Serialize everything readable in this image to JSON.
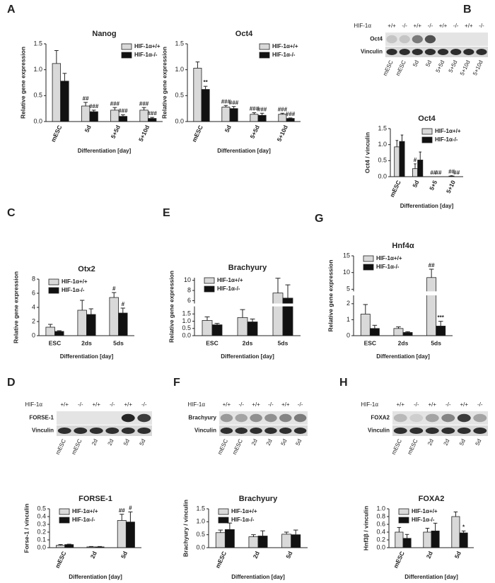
{
  "panels": [
    "A",
    "B",
    "C",
    "E",
    "G",
    "D",
    "F",
    "H"
  ],
  "blots": [
    {
      "label": "HIF-1α",
      "genotypes": [
        "+/+",
        "-/-",
        "+/+",
        "-/-",
        "+/+",
        "-/-",
        "+/+",
        "-/-"
      ],
      "rows": [
        "Oct4",
        "Vinculin"
      ],
      "lanes": [
        "mESC",
        "mESC",
        "5d",
        "5d",
        "5+5d",
        "5+5d",
        "5+10d",
        "5+10d"
      ]
    },
    {
      "label": "HIF-1α",
      "genotypes": [
        "+/+",
        "-/-",
        "+/+",
        "-/-",
        "+/+",
        "-/-"
      ],
      "rows": [
        "FORSE-1",
        "Vinculin"
      ],
      "lanes": [
        "mESC",
        "mESC",
        "2d",
        "2d",
        "5d",
        "5d"
      ]
    },
    {
      "label": "HIF-1α",
      "genotypes": [
        "+/+",
        "-/-",
        "+/+",
        "-/-",
        "+/+",
        "-/-"
      ],
      "rows": [
        "Brachyury",
        "Vinculin"
      ],
      "lanes": [
        "mESC",
        "mESC",
        "2d",
        "2d",
        "5d",
        "5d"
      ]
    },
    {
      "label": "HIF-1α",
      "genotypes": [
        "+/+",
        "-/-",
        "+/+",
        "-/-",
        "+/+",
        "-/-"
      ],
      "rows": [
        "FOXA2",
        "Vinculin"
      ],
      "lanes": [
        "mESC",
        "mESC",
        "2d",
        "2d",
        "5d",
        "5d"
      ]
    }
  ],
  "chart_data": [
    {
      "type": "bar",
      "title": "Nanog",
      "y_label": "Relative gene expression",
      "x_label": "Differentiation [day]",
      "categories": [
        "mESC",
        "5d",
        "5+5d",
        "5+10d"
      ],
      "legend": "upper right",
      "ylim": [
        0,
        1.5
      ],
      "yticks": [
        {
          "value": 0,
          "label": "0.0"
        },
        0.5,
        {
          "value": 1,
          "label": "1.0"
        },
        1.5
      ],
      "series": [
        {
          "name": "HIF-1α+/+",
          "color": "#d9d9d9",
          "values": [
            1.12,
            0.3,
            0.22,
            0.22
          ],
          "errors": [
            0.25,
            0.07,
            0.05,
            0.05
          ],
          "labels": [
            null,
            "##",
            "###",
            "###"
          ]
        },
        {
          "name": "HIF-1α-/-",
          "color": "#111111",
          "values": [
            0.78,
            0.19,
            0.1,
            0.06
          ],
          "errors": [
            0.15,
            0.03,
            0.03,
            0.02
          ],
          "labels": [
            null,
            "###",
            "###",
            "###"
          ]
        }
      ]
    },
    {
      "type": "bar",
      "title": "Oct4",
      "y_label": "Relative gene expression",
      "x_label": "Differentiation [day]",
      "categories": [
        "mESC",
        "5d",
        "5+5d",
        "5+10d"
      ],
      "legend": "upper right",
      "ylim": [
        0,
        1.5
      ],
      "yticks": [
        {
          "value": 0,
          "label": "0.0"
        },
        0.5,
        {
          "value": 1,
          "label": "1.0"
        },
        1.5
      ],
      "series": [
        {
          "name": "HIF-1α+/+",
          "color": "#d9d9d9",
          "values": [
            1.03,
            0.28,
            0.14,
            0.14
          ],
          "errors": [
            0.12,
            0.03,
            0.03,
            0.02
          ],
          "labels": [
            null,
            "###",
            "###",
            "###"
          ]
        },
        {
          "name": "HIF-1α-/-",
          "color": "#111111",
          "values": [
            0.62,
            0.25,
            0.12,
            0.06
          ],
          "errors": [
            0.06,
            0.04,
            0.04,
            0.01
          ],
          "labels": [
            "**",
            "###",
            "###",
            "###"
          ]
        }
      ]
    },
    {
      "type": "bar",
      "title": "Oct4",
      "y_label": "Oct4 / vinculin",
      "x_label": "Differentiation [day]",
      "categories": [
        "mESC",
        "5d",
        "5+5",
        "5+10"
      ],
      "legend": "upper right",
      "ylim": [
        0,
        1.5
      ],
      "yticks": [
        {
          "value": 0,
          "label": "0.0"
        },
        0.5,
        {
          "value": 1,
          "label": "1.0"
        },
        1.5
      ],
      "series": [
        {
          "name": "HIF-1α+/+",
          "color": "#d9d9d9",
          "values": [
            0.93,
            0.25,
            0,
            0.02
          ],
          "errors": [
            0.2,
            0.15,
            0,
            0.01
          ],
          "labels": [
            null,
            "#",
            "##",
            "##"
          ]
        },
        {
          "name": "HIF-1α-/-",
          "color": "#111111",
          "values": [
            1.1,
            0.52,
            0,
            0
          ],
          "errors": [
            0.2,
            0.25,
            0,
            0
          ],
          "labels": [
            null,
            null,
            "##",
            "##"
          ]
        }
      ]
    },
    {
      "type": "bar",
      "title": "Otx2",
      "y_label": "Relative gene expression",
      "x_label": "Differentiation [day]",
      "categories": [
        "ESC",
        "2ds",
        "5ds"
      ],
      "legend": "upper left",
      "ylim": [
        0,
        8
      ],
      "yticks": [
        0,
        2,
        4,
        6,
        8
      ],
      "series": [
        {
          "name": "HIF-1α+/+",
          "color": "#d9d9d9",
          "values": [
            1.2,
            3.6,
            5.4
          ],
          "errors": [
            0.4,
            1.4,
            0.7
          ],
          "labels": [
            null,
            null,
            "#"
          ]
        },
        {
          "name": "HIF-1α-/-",
          "color": "#111111",
          "values": [
            0.6,
            3.0,
            3.2
          ],
          "errors": [
            0.1,
            0.8,
            0.7
          ],
          "labels": [
            null,
            null,
            "#"
          ]
        }
      ]
    },
    {
      "type": "bar",
      "title": "Brachyury",
      "y_label": "Relative gene expression",
      "x_label": "Differentiation [day]",
      "categories": [
        "ESC",
        "2ds",
        "5ds"
      ],
      "legend": "upper left",
      "ylim": [
        0,
        10.5
      ],
      "ybreak": [
        2,
        5.5
      ],
      "yticks": [
        {
          "value": 0,
          "label": "0.0"
        },
        0.5,
        {
          "value": 1,
          "label": "1.0"
        },
        1.5,
        6,
        8,
        10
      ],
      "series": [
        {
          "name": "HIF-1α+/+",
          "color": "#d9d9d9",
          "values": [
            1.05,
            1.25,
            7.5
          ],
          "errors": [
            0.25,
            0.55,
            2.9
          ],
          "labels": [
            null,
            null,
            null
          ]
        },
        {
          "name": "HIF-1α-/-",
          "color": "#111111",
          "values": [
            0.75,
            0.95,
            6.5
          ],
          "errors": [
            0.1,
            0.2,
            2.6
          ],
          "labels": [
            null,
            null,
            null
          ]
        }
      ]
    },
    {
      "type": "bar",
      "title": "Hnf4α",
      "y_label": "Relative gene expression",
      "x_label": "Differentiation [day]",
      "categories": [
        "ESC",
        "2ds",
        "5ds"
      ],
      "legend": "upper left",
      "ylim": [
        0,
        15
      ],
      "ybreak": [
        2.5,
        4.5
      ],
      "yticks": [
        0,
        1,
        2,
        5,
        10,
        15
      ],
      "series": [
        {
          "name": "HIF-1α+/+",
          "color": "#d9d9d9",
          "values": [
            1.35,
            0.45,
            8.5
          ],
          "errors": [
            0.6,
            0.1,
            2.5
          ],
          "labels": [
            null,
            null,
            "##"
          ]
        },
        {
          "name": "HIF-1α-/-",
          "color": "#111111",
          "values": [
            0.45,
            0.2,
            0.6
          ],
          "errors": [
            0.2,
            0.05,
            0.3
          ],
          "labels": [
            null,
            null,
            "***"
          ]
        }
      ]
    },
    {
      "type": "bar",
      "title": "FORSE-1",
      "y_label": "Forse-1 / vinculin",
      "x_label": "Differentiation [day]",
      "categories": [
        "mESC",
        "2d",
        "5d"
      ],
      "legend": "upper left",
      "ylim": [
        0,
        0.5
      ],
      "yticks": [
        {
          "value": 0,
          "label": "0.0"
        },
        0.1,
        0.2,
        0.3,
        0.4,
        0.5
      ],
      "series": [
        {
          "name": "HIF-1α+/+",
          "color": "#d9d9d9",
          "values": [
            0.03,
            0.01,
            0.35
          ],
          "errors": [
            0.01,
            0.005,
            0.08
          ],
          "labels": [
            null,
            null,
            "##"
          ]
        },
        {
          "name": "HIF-1α-/-",
          "color": "#111111",
          "values": [
            0.04,
            0.01,
            0.33
          ],
          "errors": [
            0.005,
            0.005,
            0.13
          ],
          "labels": [
            null,
            null,
            "#"
          ]
        }
      ]
    },
    {
      "type": "bar",
      "title": "Brachyury",
      "y_label": "Brachyury / vinculin",
      "x_label": "Differentiation [day]",
      "categories": [
        "mESC",
        "2d",
        "5d"
      ],
      "legend": "upper left",
      "ylim": [
        0,
        1.5
      ],
      "yticks": [
        {
          "value": 0,
          "label": "0.0"
        },
        0.5,
        {
          "value": 1,
          "label": "1.0"
        },
        1.5
      ],
      "series": [
        {
          "name": "HIF-1α+/+",
          "color": "#d9d9d9",
          "values": [
            0.58,
            0.42,
            0.52
          ],
          "errors": [
            0.1,
            0.08,
            0.08
          ],
          "labels": [
            null,
            null,
            null
          ]
        },
        {
          "name": "HIF-1α-/-",
          "color": "#111111",
          "values": [
            0.7,
            0.45,
            0.5
          ],
          "errors": [
            0.25,
            0.2,
            0.18
          ],
          "labels": [
            null,
            null,
            null
          ]
        }
      ]
    },
    {
      "type": "bar",
      "title": "FOXA2",
      "y_label": "Hnf3β / vinculin",
      "x_label": "Differentiation [day]",
      "categories": [
        "mESC",
        "2d",
        "5d"
      ],
      "legend": "upper left",
      "ylim": [
        0,
        1
      ],
      "yticks": [
        {
          "value": 0,
          "label": "0.0"
        },
        0.2,
        0.4,
        0.6,
        0.8,
        {
          "value": 1,
          "label": "1.0"
        }
      ],
      "series": [
        {
          "name": "HIF-1α+/+",
          "color": "#d9d9d9",
          "values": [
            0.4,
            0.4,
            0.8
          ],
          "errors": [
            0.12,
            0.1,
            0.12
          ],
          "labels": [
            null,
            null,
            null
          ]
        },
        {
          "name": "HIF-1α-/-",
          "color": "#111111",
          "values": [
            0.24,
            0.43,
            0.38
          ],
          "errors": [
            0.1,
            0.2,
            0.05
          ],
          "labels": [
            null,
            null,
            "*"
          ]
        }
      ]
    }
  ]
}
